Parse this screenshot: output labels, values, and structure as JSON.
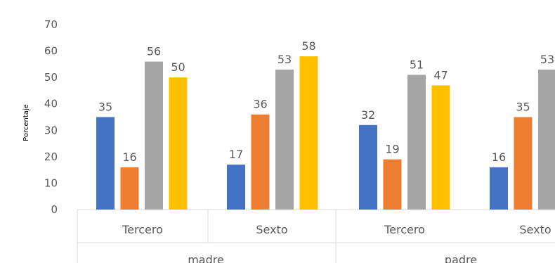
{
  "chart_data": {
    "type": "bar",
    "title": "",
    "ylabel": "Porcentaje",
    "xlabel": "",
    "ylim": [
      0,
      70
    ],
    "yticks": [
      0,
      10,
      20,
      30,
      40,
      50,
      60,
      70
    ],
    "grid": false,
    "legend": "none",
    "groups": [
      {
        "label": "madre",
        "categories": [
          "Tercero",
          "Sexto"
        ]
      },
      {
        "label": "padre",
        "categories": [
          "Tercero",
          "Sexto"
        ]
      }
    ],
    "categories": [
      "Tercero",
      "Sexto",
      "Tercero",
      "Sexto"
    ],
    "series": [
      {
        "color": "#4472C4",
        "values": [
          35,
          17,
          32,
          16
        ]
      },
      {
        "color": "#ED7D31",
        "values": [
          16,
          36,
          19,
          35
        ]
      },
      {
        "color": "#A5A5A5",
        "values": [
          56,
          53,
          51,
          53
        ]
      },
      {
        "color": "#FFC000",
        "values": [
          50,
          58,
          47,
          null
        ]
      }
    ]
  }
}
